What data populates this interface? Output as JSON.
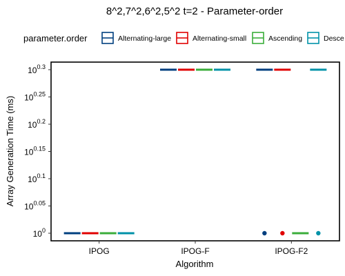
{
  "chart_data": {
    "type": "boxplot",
    "title": "8^2,7^2,6^2,5^2 t=2 - Parameter-order",
    "xlabel": "Algorithm",
    "ylabel": "Array Generation Time (ms)",
    "y_scale": "log10",
    "ylim_exponent": [
      0,
      0.3
    ],
    "y_tick_base": "10",
    "y_ticks": [
      {
        "exp": 0,
        "label": "0"
      },
      {
        "exp": 0.05,
        "label": "0.05"
      },
      {
        "exp": 0.1,
        "label": "0.1"
      },
      {
        "exp": 0.15,
        "label": "0.15"
      },
      {
        "exp": 0.2,
        "label": "0.2"
      },
      {
        "exp": 0.25,
        "label": "0.25"
      },
      {
        "exp": 0.3,
        "label": "0.3"
      }
    ],
    "categories": [
      "IPOG",
      "IPOG-F",
      "IPOG-F2"
    ],
    "legend": {
      "title": "parameter.order",
      "placement": "top",
      "entries": [
        "Alternating-large",
        "Alternating-small",
        "Ascending",
        "Desce"
      ]
    },
    "series": [
      {
        "name": "Alternating-large",
        "color": "#003f7f",
        "median_exp": [
          0,
          0.3,
          0.3
        ],
        "outliers_exp": [
          [],
          [],
          [
            0
          ]
        ]
      },
      {
        "name": "Alternating-small",
        "color": "#e00000",
        "median_exp": [
          0,
          0.3,
          0.3
        ],
        "outliers_exp": [
          [],
          [],
          [
            0
          ]
        ]
      },
      {
        "name": "Ascending",
        "color": "#3aad3a",
        "median_exp": [
          0,
          0.3,
          0
        ],
        "outliers_exp": [
          [],
          [],
          []
        ]
      },
      {
        "name": "Descending",
        "color": "#0092a8",
        "median_exp": [
          0,
          0.3,
          0.3
        ],
        "outliers_exp": [
          [],
          [],
          [
            0
          ]
        ]
      }
    ],
    "grid": false
  }
}
